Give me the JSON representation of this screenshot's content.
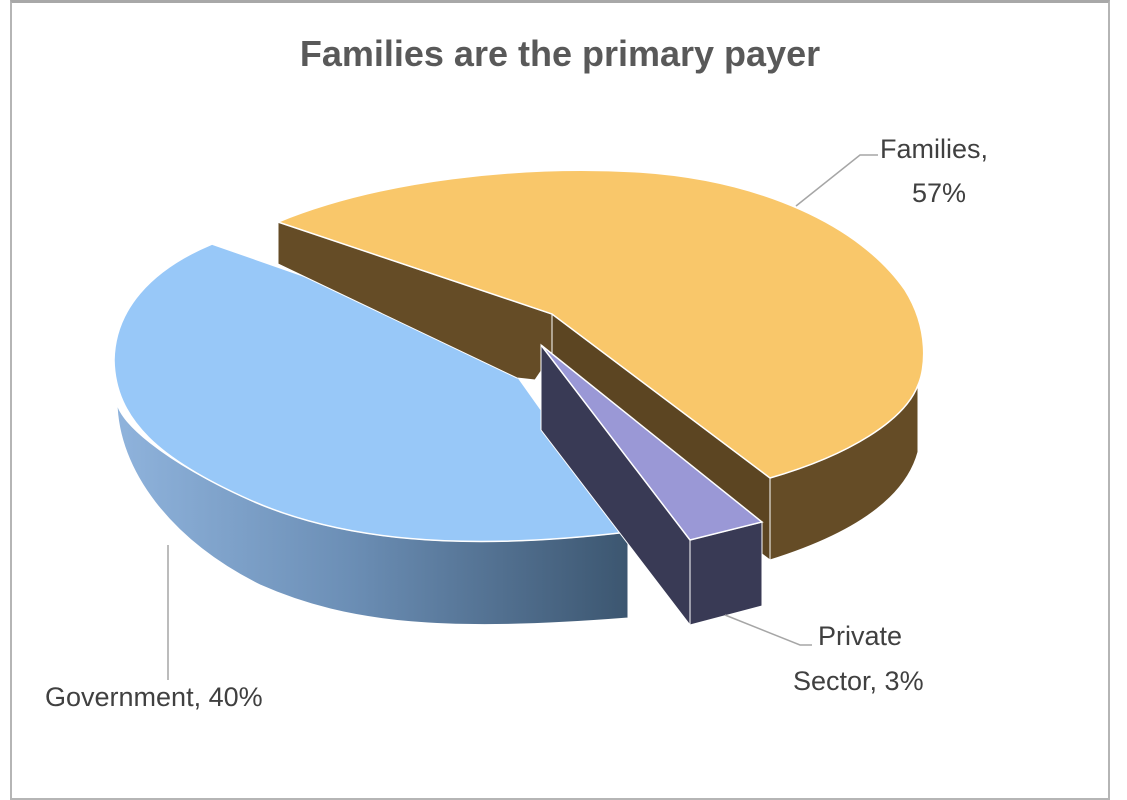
{
  "chart_data": {
    "type": "pie",
    "title": "Families are the primary payer",
    "slices": [
      {
        "name": "Families",
        "value": 57,
        "label_line1": "Families,",
        "label_line2": "57%",
        "color": "#F9C76A"
      },
      {
        "name": "Private Sector",
        "value": 3,
        "label_line1": "Private",
        "label_line2": "Sector, 3%",
        "color": "#9A98D6"
      },
      {
        "name": "Government",
        "value": 40,
        "label_line1": "Government, 40%",
        "label_line2": "",
        "color": "#98C8F8"
      }
    ],
    "unit": "%",
    "style": "3d-exploded",
    "legend": "none"
  }
}
